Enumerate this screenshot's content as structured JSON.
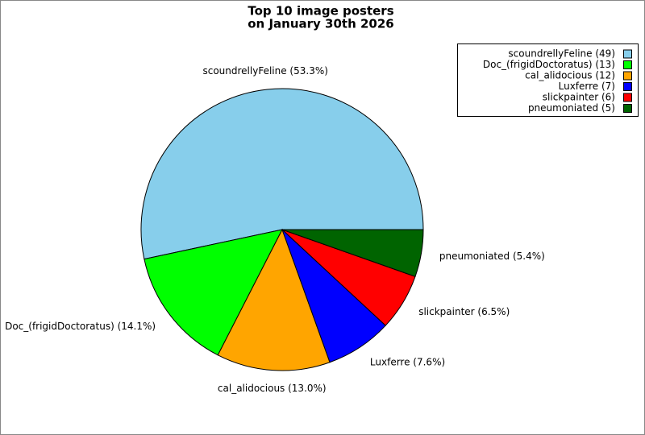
{
  "chart_data": {
    "type": "pie",
    "title": [
      "Top 10 image posters",
      "on January 30th 2026"
    ],
    "categories": [
      "scoundrellyFeline",
      "Doc_(frigidDoctoratus)",
      "cal_alidocious",
      "Luxferre",
      "slickpainter",
      "pneumoniated"
    ],
    "values": [
      53.3,
      14.1,
      13.0,
      7.6,
      6.5,
      5.4
    ],
    "value_labels": [
      "scoundrellyFeline (53.3%)",
      "Doc_(frigidDoctoratus) (14.1%)",
      "cal_alidocious (13.0%)",
      "Luxferre (7.6%)",
      "slickpainter (6.5%)",
      "pneumoniated (5.4%)"
    ],
    "colors": [
      "#87ceeb",
      "#00ff00",
      "#ffa500",
      "#0000ff",
      "#ff0000",
      "#006400"
    ],
    "legend": {
      "position": "upper right",
      "labels": [
        "scoundrellyFeline (49)",
        "Doc_(frigidDoctoratus) (13)",
        "cal_alidocious (12)",
        "Luxferre (7)",
        "slickpainter (6)",
        "pneumoniated (5)"
      ]
    }
  }
}
